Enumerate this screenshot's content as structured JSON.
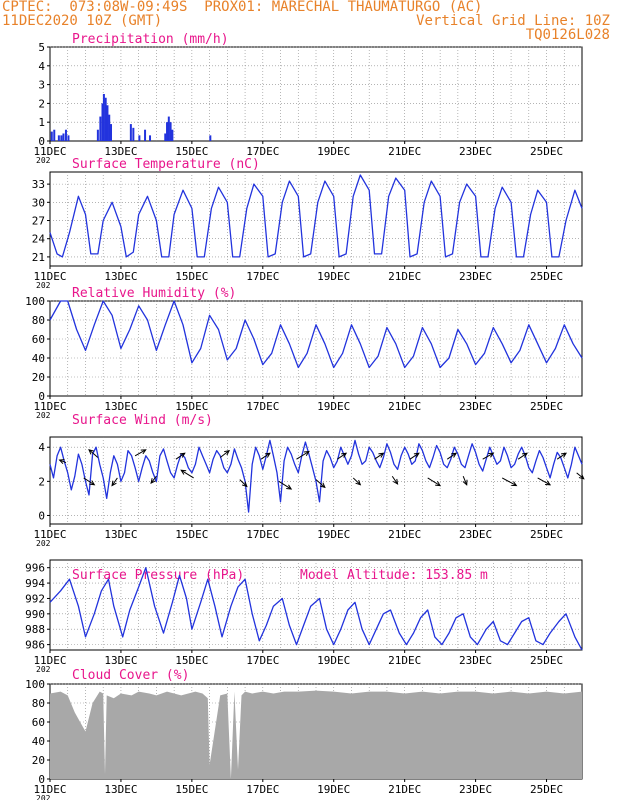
{
  "header": {
    "left_line1": "CPTEC:  073:08W-09:49S  PROX01: MARECHAL THAUMATURGO (AC)",
    "left_line2": "11DEC2020 10Z (GMT)",
    "right_line2": "Vertical Grid Line: 10Z",
    "right_line3": "TQ0126L028"
  },
  "colors": {
    "header": "#e8822a",
    "title": "#e8168c",
    "line": "#2233dd",
    "cloud": "#a8a8a8"
  },
  "x_ticks": [
    "11DEC",
    "13DEC",
    "15DEC",
    "17DEC",
    "19DEC",
    "21DEC",
    "23DEC",
    "25DEC"
  ],
  "x_tick_year": "202",
  "chart_data": [
    {
      "type": "bar",
      "title": "Precipitation (mm/h)",
      "ylim": [
        0,
        5
      ],
      "yticks": [
        0,
        1,
        2,
        3,
        4,
        5
      ],
      "x_unit": "days since 11DEC 10Z",
      "x_range": [
        0,
        15
      ],
      "bars": [
        [
          0.05,
          0.5
        ],
        [
          0.12,
          0.6
        ],
        [
          0.25,
          0.3
        ],
        [
          0.32,
          0.3
        ],
        [
          0.38,
          0.4
        ],
        [
          0.45,
          0.6
        ],
        [
          0.52,
          0.3
        ],
        [
          1.35,
          0.6
        ],
        [
          1.42,
          1.3
        ],
        [
          1.48,
          2.0
        ],
        [
          1.52,
          2.5
        ],
        [
          1.57,
          2.3
        ],
        [
          1.62,
          1.9
        ],
        [
          1.67,
          1.4
        ],
        [
          1.72,
          0.9
        ],
        [
          2.28,
          0.9
        ],
        [
          2.35,
          0.7
        ],
        [
          2.52,
          0.3
        ],
        [
          2.68,
          0.6
        ],
        [
          2.82,
          0.3
        ],
        [
          3.25,
          0.4
        ],
        [
          3.3,
          1.0
        ],
        [
          3.35,
          1.3
        ],
        [
          3.4,
          1.0
        ],
        [
          3.45,
          0.6
        ],
        [
          4.52,
          0.3
        ]
      ]
    },
    {
      "type": "line",
      "title": "Surface Temperature (nC)",
      "ylim": [
        19.5,
        35
      ],
      "yticks": [
        21,
        24,
        27,
        30,
        33
      ],
      "x_range": [
        0,
        15
      ],
      "x": [
        0,
        0.2,
        0.35,
        0.55,
        0.8,
        1.0,
        1.15,
        1.35,
        1.5,
        1.75,
        2.0,
        2.15,
        2.35,
        2.5,
        2.75,
        3.0,
        3.15,
        3.35,
        3.5,
        3.75,
        4.0,
        4.15,
        4.35,
        4.55,
        4.75,
        5.0,
        5.15,
        5.35,
        5.55,
        5.75,
        6.0,
        6.15,
        6.35,
        6.55,
        6.75,
        7.0,
        7.15,
        7.35,
        7.55,
        7.75,
        8.0,
        8.15,
        8.35,
        8.55,
        8.75,
        9.0,
        9.15,
        9.35,
        9.55,
        9.75,
        10.0,
        10.15,
        10.35,
        10.55,
        10.75,
        11.0,
        11.15,
        11.35,
        11.55,
        11.75,
        12.0,
        12.15,
        12.35,
        12.55,
        12.75,
        13.0,
        13.15,
        13.35,
        13.55,
        13.75,
        14.0,
        14.15,
        14.35,
        14.55,
        14.8,
        15.0
      ],
      "values": [
        25,
        21.5,
        21,
        25,
        31,
        28,
        21.5,
        21.5,
        27,
        30,
        26,
        21,
        21.8,
        28,
        31,
        27,
        21,
        21,
        28,
        32,
        29,
        21,
        21,
        29,
        32.5,
        30,
        21,
        21,
        29,
        33,
        31,
        21,
        21.5,
        30,
        33.5,
        31,
        21,
        21.5,
        30,
        33.5,
        31,
        21,
        21.5,
        31,
        34.5,
        32,
        21.5,
        21.5,
        31,
        34,
        32,
        21,
        21.5,
        30,
        33.5,
        31,
        21,
        21.5,
        30,
        33,
        31,
        21,
        21,
        29,
        32.5,
        30,
        21,
        21,
        28,
        32,
        30,
        21,
        21,
        27,
        32,
        29
      ]
    },
    {
      "type": "line",
      "title": "Relative Humidity (%)",
      "ylim": [
        0,
        100
      ],
      "yticks": [
        0,
        20,
        40,
        60,
        80,
        100
      ],
      "x_range": [
        0,
        15
      ],
      "x": [
        0,
        0.3,
        0.5,
        0.75,
        1.0,
        1.25,
        1.5,
        1.75,
        2.0,
        2.25,
        2.5,
        2.75,
        3.0,
        3.25,
        3.5,
        3.75,
        4.0,
        4.25,
        4.5,
        4.75,
        5.0,
        5.25,
        5.5,
        5.75,
        6.0,
        6.25,
        6.5,
        6.75,
        7.0,
        7.25,
        7.5,
        7.75,
        8.0,
        8.25,
        8.5,
        8.75,
        9.0,
        9.25,
        9.5,
        9.75,
        10.0,
        10.25,
        10.5,
        10.75,
        11.0,
        11.25,
        11.5,
        11.75,
        12.0,
        12.25,
        12.5,
        12.75,
        13.0,
        13.25,
        13.5,
        13.75,
        14.0,
        14.25,
        14.5,
        14.75,
        15.0
      ],
      "values": [
        80,
        100,
        100,
        70,
        48,
        75,
        100,
        85,
        50,
        70,
        95,
        80,
        48,
        75,
        100,
        75,
        35,
        50,
        85,
        70,
        38,
        50,
        80,
        60,
        33,
        45,
        75,
        55,
        30,
        45,
        75,
        55,
        30,
        45,
        75,
        55,
        30,
        42,
        72,
        55,
        30,
        42,
        72,
        55,
        30,
        40,
        70,
        55,
        33,
        45,
        72,
        55,
        35,
        48,
        75,
        55,
        35,
        50,
        75,
        55,
        40
      ]
    },
    {
      "type": "line",
      "title": "Surface Wind (m/s)",
      "ylim": [
        -0.5,
        4.6
      ],
      "yticks": [
        0,
        2,
        4
      ],
      "x_range": [
        0,
        15
      ],
      "x": [
        0,
        0.1,
        0.2,
        0.3,
        0.4,
        0.5,
        0.6,
        0.7,
        0.8,
        0.9,
        1.0,
        1.1,
        1.2,
        1.3,
        1.4,
        1.5,
        1.6,
        1.7,
        1.8,
        1.9,
        2.0,
        2.1,
        2.2,
        2.3,
        2.4,
        2.5,
        2.6,
        2.7,
        2.8,
        2.9,
        3.0,
        3.1,
        3.2,
        3.3,
        3.4,
        3.5,
        3.6,
        3.7,
        3.8,
        3.9,
        4.0,
        4.1,
        4.2,
        4.3,
        4.4,
        4.5,
        4.6,
        4.7,
        4.8,
        4.9,
        5.0,
        5.1,
        5.2,
        5.3,
        5.4,
        5.5,
        5.6,
        5.7,
        5.8,
        5.9,
        6.0,
        6.1,
        6.2,
        6.3,
        6.4,
        6.5,
        6.6,
        6.7,
        6.8,
        6.9,
        7.0,
        7.1,
        7.2,
        7.3,
        7.4,
        7.5,
        7.6,
        7.7,
        7.8,
        7.9,
        8.0,
        8.1,
        8.2,
        8.3,
        8.4,
        8.5,
        8.6,
        8.7,
        8.8,
        8.9,
        9.0,
        9.1,
        9.2,
        9.3,
        9.4,
        9.5,
        9.6,
        9.7,
        9.8,
        9.9,
        10.0,
        10.1,
        10.2,
        10.3,
        10.4,
        10.5,
        10.6,
        10.7,
        10.8,
        10.9,
        11.0,
        11.1,
        11.2,
        11.3,
        11.4,
        11.5,
        11.6,
        11.7,
        11.8,
        11.9,
        12.0,
        12.1,
        12.2,
        12.3,
        12.4,
        12.5,
        12.6,
        12.7,
        12.8,
        12.9,
        13.0,
        13.1,
        13.2,
        13.3,
        13.4,
        13.5,
        13.6,
        13.7,
        13.8,
        13.9,
        14.0,
        14.1,
        14.2,
        14.3,
        14.4,
        14.5,
        14.6,
        14.7,
        14.8,
        14.9,
        15.0
      ],
      "values": [
        3.0,
        2.2,
        3.5,
        4.0,
        3.2,
        2.5,
        1.5,
        2.3,
        3.6,
        3.0,
        2.0,
        1.2,
        3.6,
        4.0,
        3.0,
        2.2,
        1.0,
        2.5,
        3.5,
        3.0,
        2.0,
        2.5,
        3.8,
        3.5,
        2.8,
        2.0,
        2.8,
        3.5,
        3.2,
        2.5,
        2.0,
        3.5,
        3.9,
        3.2,
        2.5,
        2.2,
        3.0,
        3.6,
        3.4,
        2.8,
        2.5,
        3.0,
        4.0,
        3.5,
        3.0,
        2.5,
        3.3,
        3.8,
        3.5,
        2.8,
        2.5,
        3.0,
        3.9,
        3.3,
        2.8,
        2.0,
        0.2,
        3.0,
        4.0,
        3.5,
        2.7,
        3.5,
        4.4,
        3.5,
        2.5,
        0.8,
        3.2,
        4.0,
        3.6,
        3.0,
        2.5,
        3.5,
        4.3,
        3.6,
        2.8,
        2.0,
        0.8,
        3.2,
        3.8,
        3.4,
        2.8,
        3.2,
        4.0,
        3.5,
        3.0,
        3.5,
        4.4,
        3.6,
        3.0,
        3.2,
        4.0,
        3.7,
        3.2,
        2.8,
        3.4,
        4.2,
        3.7,
        3.0,
        2.7,
        3.5,
        4.0,
        3.6,
        3.0,
        3.2,
        4.2,
        3.8,
        3.2,
        2.8,
        3.4,
        4.1,
        3.7,
        3.0,
        2.8,
        3.3,
        4.0,
        3.6,
        3.0,
        2.8,
        3.5,
        4.2,
        3.7,
        3.0,
        2.6,
        3.3,
        4.0,
        3.5,
        3.0,
        3.2,
        4.0,
        3.5,
        2.8,
        3.0,
        3.6,
        4.0,
        3.5,
        2.8,
        2.5,
        3.2,
        3.8,
        3.4,
        2.8,
        2.2,
        3.0,
        3.7,
        3.4,
        2.8,
        2.2,
        3.0,
        4.0,
        3.5,
        3.0
      ],
      "arrows": [
        [
          0.45,
          3.1,
          -0.18,
          0.15
        ],
        [
          0.95,
          2.2,
          0.3,
          -0.4
        ],
        [
          1.35,
          3.4,
          -0.25,
          0.45
        ],
        [
          1.9,
          2.2,
          -0.15,
          -0.45
        ],
        [
          2.4,
          3.5,
          0.3,
          0.35
        ],
        [
          3.0,
          2.3,
          -0.15,
          -0.4
        ],
        [
          3.55,
          3.3,
          0.25,
          0.35
        ],
        [
          4.05,
          2.2,
          -0.35,
          0.45
        ],
        [
          4.8,
          3.4,
          0.25,
          0.4
        ],
        [
          5.35,
          2.1,
          0.2,
          -0.4
        ],
        [
          5.95,
          3.3,
          0.25,
          0.35
        ],
        [
          6.45,
          2.0,
          0.35,
          -0.45
        ],
        [
          6.95,
          3.3,
          0.35,
          0.45
        ],
        [
          7.5,
          2.1,
          0.25,
          -0.45
        ],
        [
          8.1,
          3.3,
          0.25,
          0.35
        ],
        [
          8.55,
          2.2,
          0.2,
          -0.4
        ],
        [
          9.15,
          3.3,
          0.25,
          0.35
        ],
        [
          9.65,
          2.3,
          0.15,
          -0.45
        ],
        [
          10.15,
          3.3,
          0.25,
          0.35
        ],
        [
          10.65,
          2.2,
          0.35,
          -0.45
        ],
        [
          11.2,
          3.3,
          0.25,
          0.35
        ],
        [
          11.65,
          2.3,
          0.1,
          -0.5
        ],
        [
          12.2,
          3.3,
          0.3,
          0.35
        ],
        [
          12.75,
          2.2,
          0.4,
          -0.45
        ],
        [
          13.2,
          3.3,
          0.25,
          0.35
        ],
        [
          13.75,
          2.2,
          0.35,
          -0.4
        ],
        [
          14.3,
          3.3,
          0.25,
          0.35
        ],
        [
          14.85,
          2.5,
          0.2,
          -0.35
        ]
      ]
    },
    {
      "type": "line",
      "title": "Surface Pressure (hPa)",
      "annotation": "Model Altitude: 153.85 m",
      "ylim": [
        985.3,
        997
      ],
      "yticks": [
        986,
        988,
        990,
        992,
        994,
        996
      ],
      "x_range": [
        0,
        15
      ],
      "x": [
        0,
        0.3,
        0.55,
        0.8,
        1.0,
        1.25,
        1.45,
        1.65,
        1.8,
        2.05,
        2.25,
        2.5,
        2.7,
        2.95,
        3.2,
        3.45,
        3.65,
        3.85,
        4.0,
        4.25,
        4.45,
        4.65,
        4.85,
        5.1,
        5.3,
        5.5,
        5.7,
        5.9,
        6.1,
        6.3,
        6.55,
        6.75,
        6.95,
        7.15,
        7.35,
        7.6,
        7.8,
        8.0,
        8.2,
        8.4,
        8.6,
        8.8,
        9.0,
        9.2,
        9.4,
        9.6,
        9.85,
        10.05,
        10.25,
        10.45,
        10.65,
        10.85,
        11.05,
        11.25,
        11.45,
        11.65,
        11.85,
        12.05,
        12.3,
        12.5,
        12.7,
        12.9,
        13.1,
        13.3,
        13.5,
        13.7,
        13.9,
        14.1,
        14.35,
        14.55,
        14.8,
        15.0
      ],
      "values": [
        991.5,
        993,
        994.5,
        991,
        987,
        990,
        993,
        994.5,
        991,
        987,
        990.5,
        993.5,
        996,
        991,
        987.5,
        991.5,
        995,
        992,
        988,
        991.5,
        994.5,
        991,
        987,
        991,
        993.5,
        994.5,
        990,
        986.5,
        988.5,
        991,
        992,
        988.5,
        986,
        988.5,
        991,
        992,
        988,
        986,
        988,
        990.5,
        991.5,
        988,
        986,
        988,
        990,
        990.5,
        987.5,
        986,
        987.5,
        989.5,
        990.5,
        987,
        986,
        987.5,
        989.5,
        990,
        987,
        986,
        988,
        989,
        986.5,
        986,
        987.5,
        989,
        989.5,
        986.5,
        986,
        987.5,
        989,
        990,
        987,
        985.3
      ]
    },
    {
      "type": "area",
      "title": "Cloud Cover (%)",
      "ylim": [
        0,
        100
      ],
      "yticks": [
        0,
        20,
        40,
        60,
        80,
        100
      ],
      "x_range": [
        0,
        15
      ],
      "x": [
        0,
        0.3,
        0.5,
        0.7,
        0.85,
        1.0,
        1.2,
        1.4,
        1.5,
        1.55,
        1.6,
        1.8,
        2.0,
        2.3,
        2.5,
        2.8,
        3.0,
        3.3,
        3.5,
        3.7,
        3.9,
        4.1,
        4.3,
        4.45,
        4.5,
        4.8,
        5.0,
        5.1,
        5.2,
        5.3,
        5.4,
        5.5,
        5.7,
        6.0,
        6.3,
        6.6,
        7.0,
        7.5,
        8.0,
        8.5,
        9.0,
        9.5,
        10.0,
        10.5,
        11.0,
        11.5,
        12.0,
        12.5,
        13.0,
        13.5,
        14.0,
        14.5,
        15.0
      ],
      "values": [
        90,
        92,
        88,
        70,
        60,
        50,
        80,
        92,
        90,
        5,
        88,
        85,
        90,
        88,
        92,
        90,
        88,
        92,
        90,
        88,
        90,
        92,
        90,
        85,
        15,
        88,
        90,
        0,
        92,
        10,
        88,
        92,
        90,
        92,
        90,
        92,
        92,
        93,
        92,
        90,
        92,
        92,
        90,
        92,
        90,
        92,
        92,
        90,
        92,
        90,
        92,
        90,
        92
      ]
    }
  ]
}
